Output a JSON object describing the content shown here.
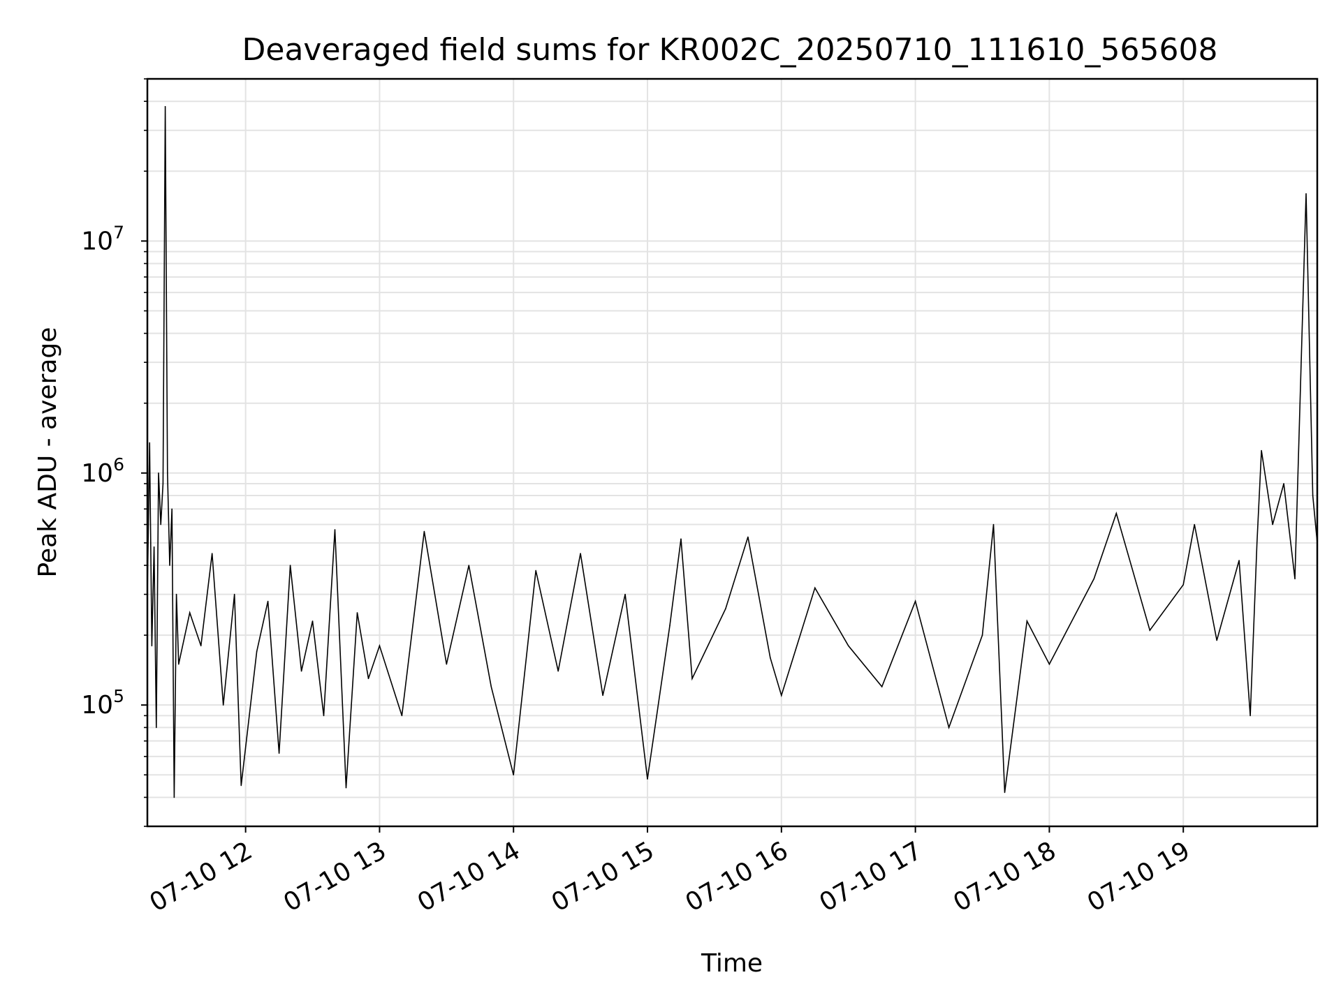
{
  "chart_data": {
    "type": "line",
    "title": "Deaveraged field sums for KR002C_20250710_111610_565608",
    "xlabel": "Time",
    "ylabel": "Peak ADU - average",
    "yscale": "log",
    "grid": true,
    "line_color": "#000000",
    "grid_color": "#e3e3e3",
    "xlim": [
      "2025-07-10 11:16",
      "2025-07-10 20:00"
    ],
    "ylim": [
      30000,
      50000000
    ],
    "x_ticks": [
      {
        "value": "2025-07-10 12:00",
        "label": "07-10 12"
      },
      {
        "value": "2025-07-10 13:00",
        "label": "07-10 13"
      },
      {
        "value": "2025-07-10 14:00",
        "label": "07-10 14"
      },
      {
        "value": "2025-07-10 15:00",
        "label": "07-10 15"
      },
      {
        "value": "2025-07-10 16:00",
        "label": "07-10 16"
      },
      {
        "value": "2025-07-10 17:00",
        "label": "07-10 17"
      },
      {
        "value": "2025-07-10 18:00",
        "label": "07-10 18"
      },
      {
        "value": "2025-07-10 19:00",
        "label": "07-10 19"
      }
    ],
    "y_ticks": [
      {
        "value": 100000,
        "base": "10",
        "exponent": "5"
      },
      {
        "value": 1000000,
        "base": "10",
        "exponent": "6"
      },
      {
        "value": 10000000,
        "base": "10",
        "exponent": "7"
      }
    ],
    "series": [
      {
        "points": [
          [
            "2025-07-10 11:16",
            300000
          ],
          [
            "2025-07-10 11:17",
            1350000
          ],
          [
            "2025-07-10 11:18",
            180000
          ],
          [
            "2025-07-10 11:19",
            480000
          ],
          [
            "2025-07-10 11:20",
            80000
          ],
          [
            "2025-07-10 11:21",
            1000000
          ],
          [
            "2025-07-10 11:22",
            600000
          ],
          [
            "2025-07-10 11:23",
            900000
          ],
          [
            "2025-07-10 11:24",
            38000000
          ],
          [
            "2025-07-10 11:25",
            1000000
          ],
          [
            "2025-07-10 11:26",
            400000
          ],
          [
            "2025-07-10 11:27",
            700000
          ],
          [
            "2025-07-10 11:28",
            40000
          ],
          [
            "2025-07-10 11:29",
            300000
          ],
          [
            "2025-07-10 11:30",
            150000
          ],
          [
            "2025-07-10 11:35",
            250000
          ],
          [
            "2025-07-10 11:40",
            180000
          ],
          [
            "2025-07-10 11:45",
            450000
          ],
          [
            "2025-07-10 11:50",
            100000
          ],
          [
            "2025-07-10 11:55",
            300000
          ],
          [
            "2025-07-10 11:58",
            45000
          ],
          [
            "2025-07-10 12:05",
            170000
          ],
          [
            "2025-07-10 12:10",
            280000
          ],
          [
            "2025-07-10 12:15",
            62000
          ],
          [
            "2025-07-10 12:20",
            400000
          ],
          [
            "2025-07-10 12:25",
            140000
          ],
          [
            "2025-07-10 12:30",
            230000
          ],
          [
            "2025-07-10 12:35",
            90000
          ],
          [
            "2025-07-10 12:40",
            570000
          ],
          [
            "2025-07-10 12:45",
            44000
          ],
          [
            "2025-07-10 12:50",
            250000
          ],
          [
            "2025-07-10 12:55",
            130000
          ],
          [
            "2025-07-10 13:00",
            180000
          ],
          [
            "2025-07-10 13:10",
            90000
          ],
          [
            "2025-07-10 13:20",
            560000
          ],
          [
            "2025-07-10 13:30",
            150000
          ],
          [
            "2025-07-10 13:40",
            400000
          ],
          [
            "2025-07-10 13:50",
            120000
          ],
          [
            "2025-07-10 14:00",
            50000
          ],
          [
            "2025-07-10 14:10",
            380000
          ],
          [
            "2025-07-10 14:20",
            140000
          ],
          [
            "2025-07-10 14:30",
            450000
          ],
          [
            "2025-07-10 14:40",
            110000
          ],
          [
            "2025-07-10 14:50",
            300000
          ],
          [
            "2025-07-10 15:00",
            48000
          ],
          [
            "2025-07-10 15:10",
            220000
          ],
          [
            "2025-07-10 15:15",
            520000
          ],
          [
            "2025-07-10 15:20",
            130000
          ],
          [
            "2025-07-10 15:35",
            260000
          ],
          [
            "2025-07-10 15:45",
            530000
          ],
          [
            "2025-07-10 15:55",
            160000
          ],
          [
            "2025-07-10 16:00",
            110000
          ],
          [
            "2025-07-10 16:15",
            320000
          ],
          [
            "2025-07-10 16:30",
            180000
          ],
          [
            "2025-07-10 16:45",
            120000
          ],
          [
            "2025-07-10 17:00",
            280000
          ],
          [
            "2025-07-10 17:15",
            80000
          ],
          [
            "2025-07-10 17:30",
            200000
          ],
          [
            "2025-07-10 17:35",
            600000
          ],
          [
            "2025-07-10 17:40",
            42000
          ],
          [
            "2025-07-10 17:50",
            230000
          ],
          [
            "2025-07-10 18:00",
            150000
          ],
          [
            "2025-07-10 18:20",
            350000
          ],
          [
            "2025-07-10 18:30",
            670000
          ],
          [
            "2025-07-10 18:45",
            210000
          ],
          [
            "2025-07-10 19:00",
            330000
          ],
          [
            "2025-07-10 19:05",
            600000
          ],
          [
            "2025-07-10 19:15",
            190000
          ],
          [
            "2025-07-10 19:25",
            420000
          ],
          [
            "2025-07-10 19:30",
            90000
          ],
          [
            "2025-07-10 19:33",
            500000
          ],
          [
            "2025-07-10 19:35",
            1250000
          ],
          [
            "2025-07-10 19:40",
            600000
          ],
          [
            "2025-07-10 19:45",
            900000
          ],
          [
            "2025-07-10 19:50",
            350000
          ],
          [
            "2025-07-10 19:55",
            16000000
          ],
          [
            "2025-07-10 19:58",
            800000
          ],
          [
            "2025-07-10 20:00",
            500000
          ]
        ]
      }
    ]
  }
}
